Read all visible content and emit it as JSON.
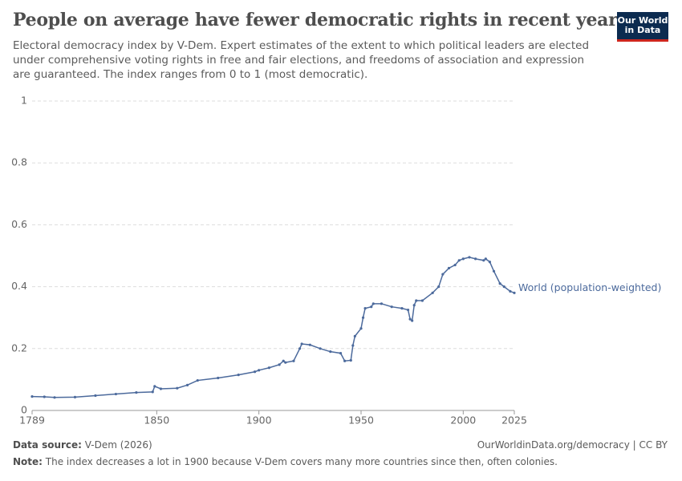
{
  "chart_data": {
    "type": "line",
    "title": "People on average have fewer democratic rights in recent years",
    "subtitle": "Electoral democracy index by V-Dem. Expert estimates of the extent to which political leaders are elected under comprehensive voting rights in free and fair elections, and freedoms of association and expression are guaranteed. The index ranges from 0 to 1 (most democratic).",
    "logo": [
      "Our World",
      "in Data"
    ],
    "source_label": "Data source:",
    "source": "V-Dem (2026)",
    "url": "OurWorldinData.org/democracy | CC BY",
    "note_label": "Note:",
    "note": "The index decreases a lot in 1900 because V-Dem covers many more countries since then, often colonies.",
    "x": [
      1789,
      1795,
      1800,
      1810,
      1820,
      1830,
      1840,
      1848,
      1849,
      1852,
      1860,
      1865,
      1870,
      1880,
      1890,
      1898,
      1900,
      1905,
      1910,
      1912,
      1913,
      1917,
      1920,
      1921,
      1925,
      1930,
      1935,
      1940,
      1942,
      1945,
      1946,
      1947,
      1950,
      1951,
      1952,
      1955,
      1956,
      1960,
      1965,
      1970,
      1973,
      1974,
      1975,
      1976,
      1977,
      1980,
      1985,
      1988,
      1990,
      1993,
      1996,
      1998,
      2000,
      2003,
      2006,
      2010,
      2011,
      2013,
      2015,
      2018,
      2020,
      2023,
      2025
    ],
    "series": [
      {
        "name": "World (population-weighted)",
        "color": "#4c6a9c",
        "values": [
          0.045,
          0.044,
          0.042,
          0.043,
          0.048,
          0.053,
          0.058,
          0.06,
          0.078,
          0.07,
          0.072,
          0.082,
          0.097,
          0.105,
          0.115,
          0.125,
          0.13,
          0.138,
          0.148,
          0.16,
          0.155,
          0.16,
          0.2,
          0.215,
          0.212,
          0.2,
          0.19,
          0.185,
          0.16,
          0.162,
          0.21,
          0.24,
          0.265,
          0.3,
          0.33,
          0.335,
          0.345,
          0.345,
          0.335,
          0.33,
          0.325,
          0.295,
          0.29,
          0.34,
          0.355,
          0.355,
          0.38,
          0.4,
          0.44,
          0.46,
          0.47,
          0.485,
          0.49,
          0.495,
          0.49,
          0.485,
          0.49,
          0.48,
          0.45,
          0.41,
          0.4,
          0.385,
          0.38
        ]
      }
    ],
    "xlim": [
      1789,
      2025
    ],
    "xticks": [
      1789,
      1850,
      1900,
      1950,
      2000,
      2025
    ],
    "ylim": [
      0,
      1
    ],
    "yticks": [
      0,
      0.2,
      0.4,
      0.6,
      0.8,
      1
    ],
    "grid": true
  }
}
